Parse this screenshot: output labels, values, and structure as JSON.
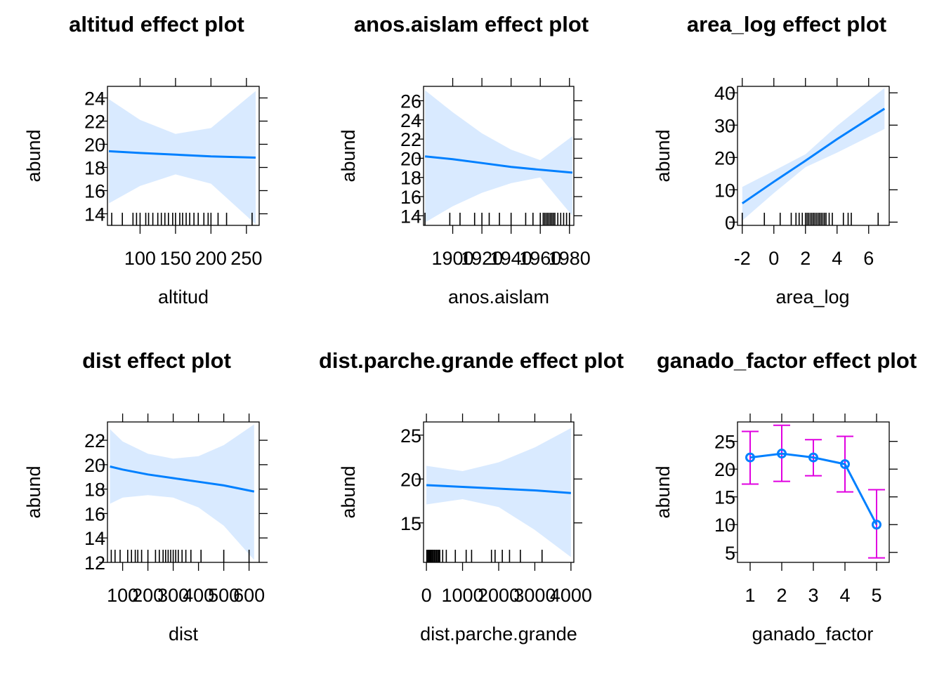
{
  "colors": {
    "line": "#0080FF",
    "band": "#D9EAFF",
    "error": "#E000E0",
    "axis": "#000000"
  },
  "chart_data": [
    {
      "type": "line",
      "title": "altitud effect plot",
      "xlabel": "altitud",
      "ylabel": "abund",
      "xlim": [
        54,
        268
      ],
      "ylim": [
        13,
        25
      ],
      "xticks": [
        100,
        150,
        200,
        250
      ],
      "yticks": [
        14,
        16,
        18,
        20,
        22,
        24
      ],
      "x": [
        56,
        100,
        150,
        200,
        263
      ],
      "fit": [
        19.4,
        19.25,
        19.1,
        18.95,
        18.85
      ],
      "lower": [
        14.9,
        16.4,
        17.4,
        16.6,
        13.1
      ],
      "upper": [
        23.9,
        22.1,
        20.9,
        21.4,
        24.6
      ],
      "rug": [
        60,
        75,
        90,
        95,
        100,
        108,
        112,
        118,
        125,
        130,
        135,
        140,
        146,
        150,
        156,
        160,
        165,
        170,
        176,
        182,
        190,
        196,
        200,
        210,
        222,
        258
      ]
    },
    {
      "type": "line",
      "title": "anos.aislam effect plot",
      "xlabel": "anos.aislam",
      "ylabel": "abund",
      "xlim": [
        1880,
        1983
      ],
      "ylim": [
        13,
        27.5
      ],
      "xticks": [
        1900,
        1920,
        1940,
        1960,
        1980
      ],
      "yticks": [
        14,
        16,
        18,
        20,
        22,
        24,
        26
      ],
      "x": [
        1881,
        1900,
        1920,
        1940,
        1960,
        1982
      ],
      "fit": [
        20.2,
        19.9,
        19.5,
        19.1,
        18.8,
        18.5
      ],
      "lower": [
        13.3,
        15.0,
        16.4,
        17.4,
        18.0,
        14.0
      ],
      "upper": [
        27.1,
        24.8,
        22.6,
        20.9,
        19.8,
        22.3
      ],
      "rug": [
        1881,
        1898,
        1905,
        1915,
        1920,
        1925,
        1932,
        1940,
        1950,
        1955,
        1960,
        1962,
        1963,
        1964,
        1965,
        1966,
        1967,
        1968,
        1969,
        1970,
        1972,
        1974,
        1976,
        1978,
        1980
      ]
    },
    {
      "type": "line",
      "title": "area_log effect plot",
      "xlabel": "area_log",
      "ylabel": "abund",
      "xlim": [
        -2.3,
        7.3
      ],
      "ylim": [
        -1,
        42
      ],
      "xticks": [
        -2,
        0,
        2,
        4,
        6
      ],
      "yticks": [
        0,
        10,
        20,
        30,
        40
      ],
      "x": [
        -2.0,
        0,
        2,
        4,
        7
      ],
      "fit": [
        5.8,
        12.5,
        19.0,
        25.7,
        35.1
      ],
      "lower": [
        0.5,
        9.0,
        17.0,
        21.5,
        28.8
      ],
      "upper": [
        10.9,
        15.9,
        21.0,
        29.8,
        41.5
      ],
      "rug": [
        -2.0,
        -0.6,
        0.4,
        1.1,
        1.4,
        1.6,
        1.8,
        2.0,
        2.1,
        2.2,
        2.3,
        2.4,
        2.5,
        2.6,
        2.7,
        2.8,
        2.9,
        3.0,
        3.1,
        3.2,
        3.3,
        3.5,
        3.7,
        4.4,
        4.7,
        4.9,
        6.6
      ]
    },
    {
      "type": "line",
      "title": "dist effect plot",
      "xlabel": "dist",
      "ylabel": "abund",
      "xlim": [
        40,
        640
      ],
      "ylim": [
        12,
        23.5
      ],
      "xticks": [
        100,
        200,
        300,
        400,
        500,
        600
      ],
      "xticklabels": [
        "100",
        "200",
        "300",
        "400",
        "500",
        "600"
      ],
      "yticks": [
        12,
        14,
        16,
        18,
        20,
        22
      ],
      "x": [
        50,
        100,
        200,
        300,
        400,
        500,
        620
      ],
      "fit": [
        19.85,
        19.6,
        19.2,
        18.9,
        18.6,
        18.3,
        17.8
      ],
      "lower": [
        16.8,
        17.3,
        17.5,
        17.3,
        16.5,
        15.0,
        12.2
      ],
      "upper": [
        22.9,
        21.9,
        20.9,
        20.5,
        20.7,
        21.6,
        23.3
      ],
      "rug": [
        55,
        70,
        90,
        120,
        135,
        150,
        160,
        175,
        200,
        230,
        245,
        260,
        270,
        280,
        290,
        300,
        310,
        320,
        335,
        350,
        370,
        410,
        500,
        600
      ]
    },
    {
      "type": "line",
      "title": "dist.parche.grande effect plot",
      "xlabel": "dist.parche.grande",
      "ylabel": "abund",
      "xlim": [
        -80,
        4080
      ],
      "ylim": [
        10.5,
        26.5
      ],
      "xticks": [
        0,
        1000,
        2000,
        3000,
        4000
      ],
      "xticklabels": [
        "0",
        "1000",
        "2000",
        "3000",
        "4000"
      ],
      "yticks": [
        15,
        20,
        25
      ],
      "x": [
        0,
        1000,
        2000,
        3000,
        4000
      ],
      "fit": [
        19.3,
        19.1,
        18.9,
        18.7,
        18.4
      ],
      "lower": [
        17.1,
        17.7,
        16.8,
        14.2,
        11.1
      ],
      "upper": [
        21.5,
        20.9,
        21.9,
        23.6,
        25.8
      ],
      "rug": [
        10,
        40,
        70,
        100,
        130,
        160,
        190,
        220,
        250,
        280,
        310,
        340,
        370,
        450,
        550,
        800,
        1100,
        1250,
        1800,
        1900,
        2100,
        2300,
        2600,
        3200
      ]
    },
    {
      "type": "errorbar",
      "title": "ganado_factor effect plot",
      "xlabel": "ganado_factor",
      "ylabel": "abund",
      "xlim": [
        0.6,
        5.4
      ],
      "ylim": [
        3.2,
        28.5
      ],
      "categories": [
        "1",
        "2",
        "3",
        "4",
        "5"
      ],
      "yticks": [
        5,
        10,
        15,
        20,
        25
      ],
      "values": [
        22.1,
        22.8,
        22.1,
        20.9,
        10.0
      ],
      "lower": [
        17.3,
        17.8,
        18.8,
        15.9,
        4.0
      ],
      "upper": [
        26.8,
        27.9,
        25.3,
        25.9,
        16.3
      ]
    }
  ]
}
